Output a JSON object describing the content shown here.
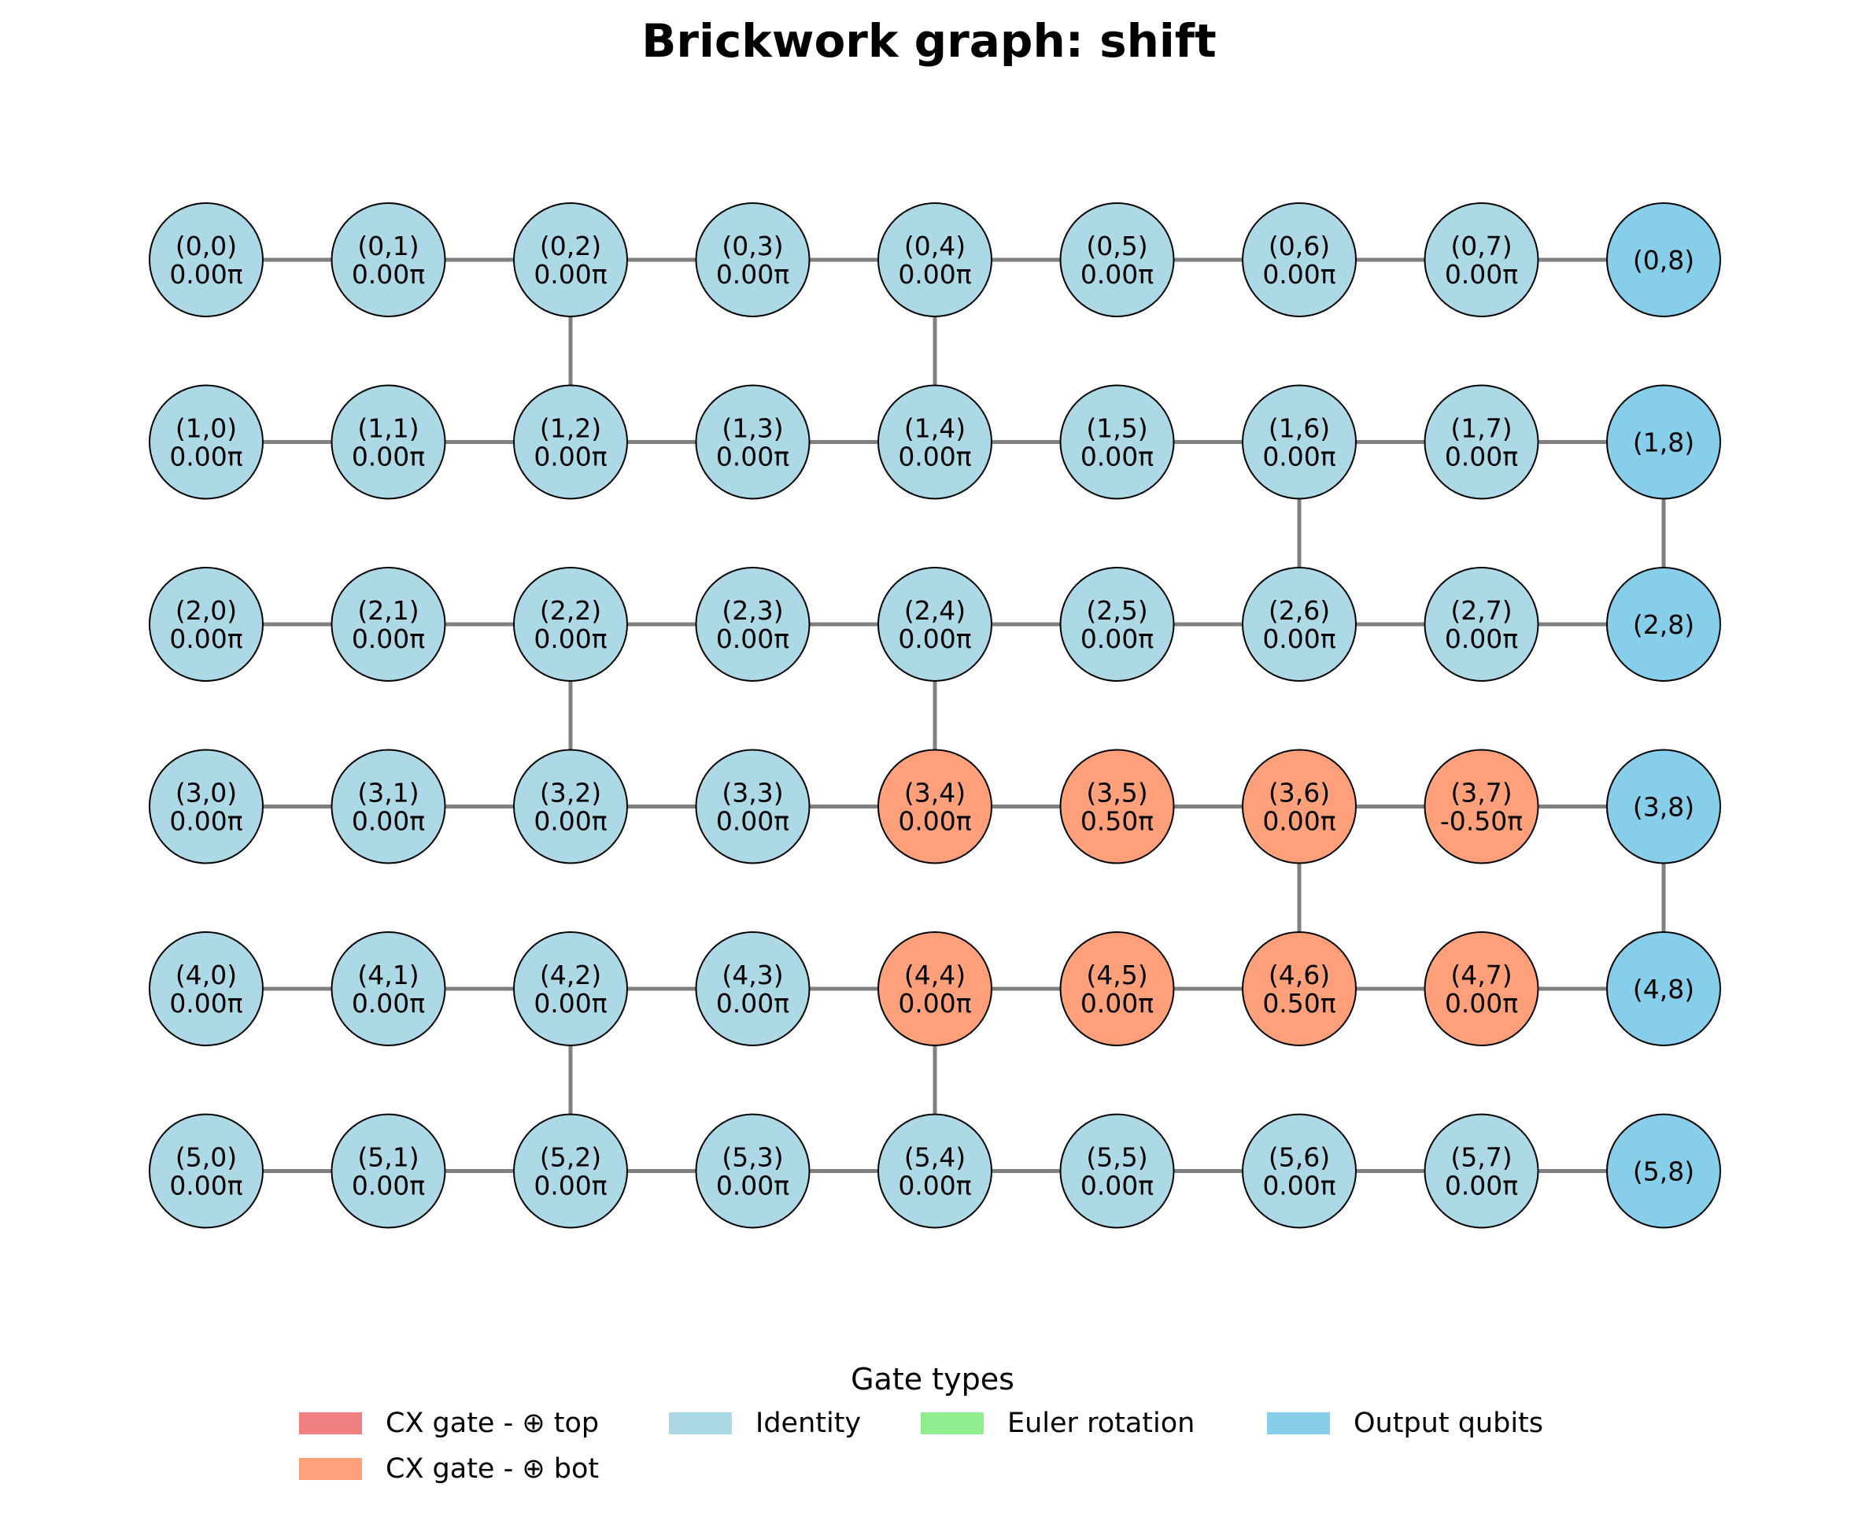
{
  "title": "Brickwork graph: shift",
  "rows": 6,
  "cols": 9,
  "colors": {
    "identity": "#ADD8E6",
    "cx_bot": "#FFA07A",
    "cx_top": "#F08080",
    "euler": "#90EE90",
    "output": "#87CEEB",
    "edge": "#808080"
  },
  "nodes": [
    {
      "r": 0,
      "c": 0,
      "label": "(0,0)",
      "angle": "0.00π",
      "type": "identity"
    },
    {
      "r": 0,
      "c": 1,
      "label": "(0,1)",
      "angle": "0.00π",
      "type": "identity"
    },
    {
      "r": 0,
      "c": 2,
      "label": "(0,2)",
      "angle": "0.00π",
      "type": "identity"
    },
    {
      "r": 0,
      "c": 3,
      "label": "(0,3)",
      "angle": "0.00π",
      "type": "identity"
    },
    {
      "r": 0,
      "c": 4,
      "label": "(0,4)",
      "angle": "0.00π",
      "type": "identity"
    },
    {
      "r": 0,
      "c": 5,
      "label": "(0,5)",
      "angle": "0.00π",
      "type": "identity"
    },
    {
      "r": 0,
      "c": 6,
      "label": "(0,6)",
      "angle": "0.00π",
      "type": "identity"
    },
    {
      "r": 0,
      "c": 7,
      "label": "(0,7)",
      "angle": "0.00π",
      "type": "identity"
    },
    {
      "r": 0,
      "c": 8,
      "label": "(0,8)",
      "angle": "",
      "type": "output"
    },
    {
      "r": 1,
      "c": 0,
      "label": "(1,0)",
      "angle": "0.00π",
      "type": "identity"
    },
    {
      "r": 1,
      "c": 1,
      "label": "(1,1)",
      "angle": "0.00π",
      "type": "identity"
    },
    {
      "r": 1,
      "c": 2,
      "label": "(1,2)",
      "angle": "0.00π",
      "type": "identity"
    },
    {
      "r": 1,
      "c": 3,
      "label": "(1,3)",
      "angle": "0.00π",
      "type": "identity"
    },
    {
      "r": 1,
      "c": 4,
      "label": "(1,4)",
      "angle": "0.00π",
      "type": "identity"
    },
    {
      "r": 1,
      "c": 5,
      "label": "(1,5)",
      "angle": "0.00π",
      "type": "identity"
    },
    {
      "r": 1,
      "c": 6,
      "label": "(1,6)",
      "angle": "0.00π",
      "type": "identity"
    },
    {
      "r": 1,
      "c": 7,
      "label": "(1,7)",
      "angle": "0.00π",
      "type": "identity"
    },
    {
      "r": 1,
      "c": 8,
      "label": "(1,8)",
      "angle": "",
      "type": "output"
    },
    {
      "r": 2,
      "c": 0,
      "label": "(2,0)",
      "angle": "0.00π",
      "type": "identity"
    },
    {
      "r": 2,
      "c": 1,
      "label": "(2,1)",
      "angle": "0.00π",
      "type": "identity"
    },
    {
      "r": 2,
      "c": 2,
      "label": "(2,2)",
      "angle": "0.00π",
      "type": "identity"
    },
    {
      "r": 2,
      "c": 3,
      "label": "(2,3)",
      "angle": "0.00π",
      "type": "identity"
    },
    {
      "r": 2,
      "c": 4,
      "label": "(2,4)",
      "angle": "0.00π",
      "type": "identity"
    },
    {
      "r": 2,
      "c": 5,
      "label": "(2,5)",
      "angle": "0.00π",
      "type": "identity"
    },
    {
      "r": 2,
      "c": 6,
      "label": "(2,6)",
      "angle": "0.00π",
      "type": "identity"
    },
    {
      "r": 2,
      "c": 7,
      "label": "(2,7)",
      "angle": "0.00π",
      "type": "identity"
    },
    {
      "r": 2,
      "c": 8,
      "label": "(2,8)",
      "angle": "",
      "type": "output"
    },
    {
      "r": 3,
      "c": 0,
      "label": "(3,0)",
      "angle": "0.00π",
      "type": "identity"
    },
    {
      "r": 3,
      "c": 1,
      "label": "(3,1)",
      "angle": "0.00π",
      "type": "identity"
    },
    {
      "r": 3,
      "c": 2,
      "label": "(3,2)",
      "angle": "0.00π",
      "type": "identity"
    },
    {
      "r": 3,
      "c": 3,
      "label": "(3,3)",
      "angle": "0.00π",
      "type": "identity"
    },
    {
      "r": 3,
      "c": 4,
      "label": "(3,4)",
      "angle": "0.00π",
      "type": "cx_bot"
    },
    {
      "r": 3,
      "c": 5,
      "label": "(3,5)",
      "angle": "0.50π",
      "type": "cx_bot"
    },
    {
      "r": 3,
      "c": 6,
      "label": "(3,6)",
      "angle": "0.00π",
      "type": "cx_bot"
    },
    {
      "r": 3,
      "c": 7,
      "label": "(3,7)",
      "angle": "-0.50π",
      "type": "cx_bot"
    },
    {
      "r": 3,
      "c": 8,
      "label": "(3,8)",
      "angle": "",
      "type": "output"
    },
    {
      "r": 4,
      "c": 0,
      "label": "(4,0)",
      "angle": "0.00π",
      "type": "identity"
    },
    {
      "r": 4,
      "c": 1,
      "label": "(4,1)",
      "angle": "0.00π",
      "type": "identity"
    },
    {
      "r": 4,
      "c": 2,
      "label": "(4,2)",
      "angle": "0.00π",
      "type": "identity"
    },
    {
      "r": 4,
      "c": 3,
      "label": "(4,3)",
      "angle": "0.00π",
      "type": "identity"
    },
    {
      "r": 4,
      "c": 4,
      "label": "(4,4)",
      "angle": "0.00π",
      "type": "cx_bot"
    },
    {
      "r": 4,
      "c": 5,
      "label": "(4,5)",
      "angle": "0.00π",
      "type": "cx_bot"
    },
    {
      "r": 4,
      "c": 6,
      "label": "(4,6)",
      "angle": "0.50π",
      "type": "cx_bot"
    },
    {
      "r": 4,
      "c": 7,
      "label": "(4,7)",
      "angle": "0.00π",
      "type": "cx_bot"
    },
    {
      "r": 4,
      "c": 8,
      "label": "(4,8)",
      "angle": "",
      "type": "output"
    },
    {
      "r": 5,
      "c": 0,
      "label": "(5,0)",
      "angle": "0.00π",
      "type": "identity"
    },
    {
      "r": 5,
      "c": 1,
      "label": "(5,1)",
      "angle": "0.00π",
      "type": "identity"
    },
    {
      "r": 5,
      "c": 2,
      "label": "(5,2)",
      "angle": "0.00π",
      "type": "identity"
    },
    {
      "r": 5,
      "c": 3,
      "label": "(5,3)",
      "angle": "0.00π",
      "type": "identity"
    },
    {
      "r": 5,
      "c": 4,
      "label": "(5,4)",
      "angle": "0.00π",
      "type": "identity"
    },
    {
      "r": 5,
      "c": 5,
      "label": "(5,5)",
      "angle": "0.00π",
      "type": "identity"
    },
    {
      "r": 5,
      "c": 6,
      "label": "(5,6)",
      "angle": "0.00π",
      "type": "identity"
    },
    {
      "r": 5,
      "c": 7,
      "label": "(5,7)",
      "angle": "0.00π",
      "type": "identity"
    },
    {
      "r": 5,
      "c": 8,
      "label": "(5,8)",
      "angle": "",
      "type": "output"
    }
  ],
  "vertical_edges": [
    {
      "c": 2,
      "r1": 0,
      "r2": 1
    },
    {
      "c": 4,
      "r1": 0,
      "r2": 1
    },
    {
      "c": 6,
      "r1": 1,
      "r2": 2
    },
    {
      "c": 8,
      "r1": 1,
      "r2": 2
    },
    {
      "c": 2,
      "r1": 2,
      "r2": 3
    },
    {
      "c": 4,
      "r1": 2,
      "r2": 3
    },
    {
      "c": 6,
      "r1": 3,
      "r2": 4
    },
    {
      "c": 8,
      "r1": 3,
      "r2": 4
    },
    {
      "c": 2,
      "r1": 4,
      "r2": 5
    },
    {
      "c": 4,
      "r1": 4,
      "r2": 5
    }
  ],
  "legend": {
    "title": "Gate types",
    "items": [
      {
        "label": "CX gate - ⊕ top",
        "color": "#F08080"
      },
      {
        "label": "Identity",
        "color": "#ADD8E6"
      },
      {
        "label": "Euler rotation",
        "color": "#90EE90"
      },
      {
        "label": "Output qubits",
        "color": "#87CEEB"
      },
      {
        "label": "CX gate - ⊕ bot",
        "color": "#FFA07A"
      }
    ]
  }
}
